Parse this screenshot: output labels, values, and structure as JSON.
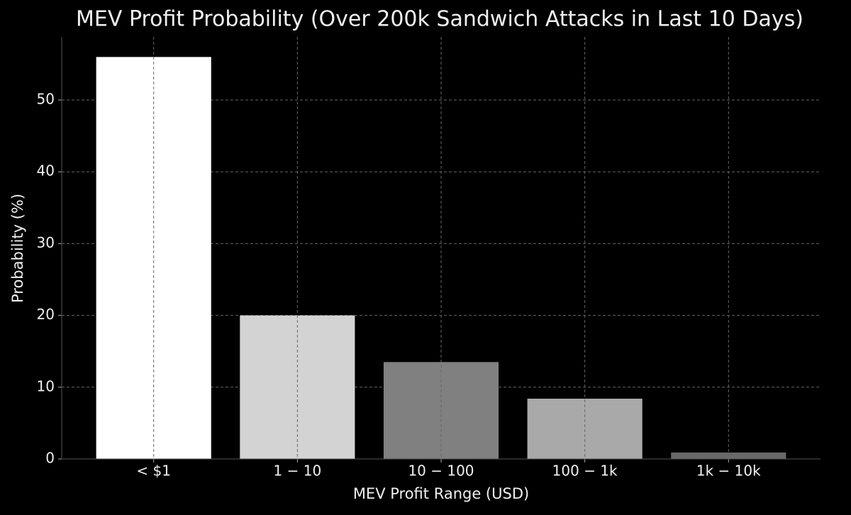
{
  "chart_data": {
    "type": "bar",
    "title": "MEV Profit Probability (Over 200k Sandwich Attacks in Last 10 Days)",
    "x_label": "MEV Profit Range (USD)",
    "y_label": "Probability (%)",
    "categories": [
      "< $1",
      "1 − 10",
      "10 − 100",
      "100 − 1k",
      "1k − 10k"
    ],
    "values": [
      56,
      20,
      13.5,
      8.4,
      0.9
    ],
    "colors": [
      "#ffffff",
      "#d3d3d3",
      "#808080",
      "#a9a9a9",
      "#696969"
    ],
    "ylim": [
      0,
      58.8
    ],
    "yticks": [
      0,
      10,
      20,
      30,
      40,
      50
    ],
    "grid": true
  }
}
